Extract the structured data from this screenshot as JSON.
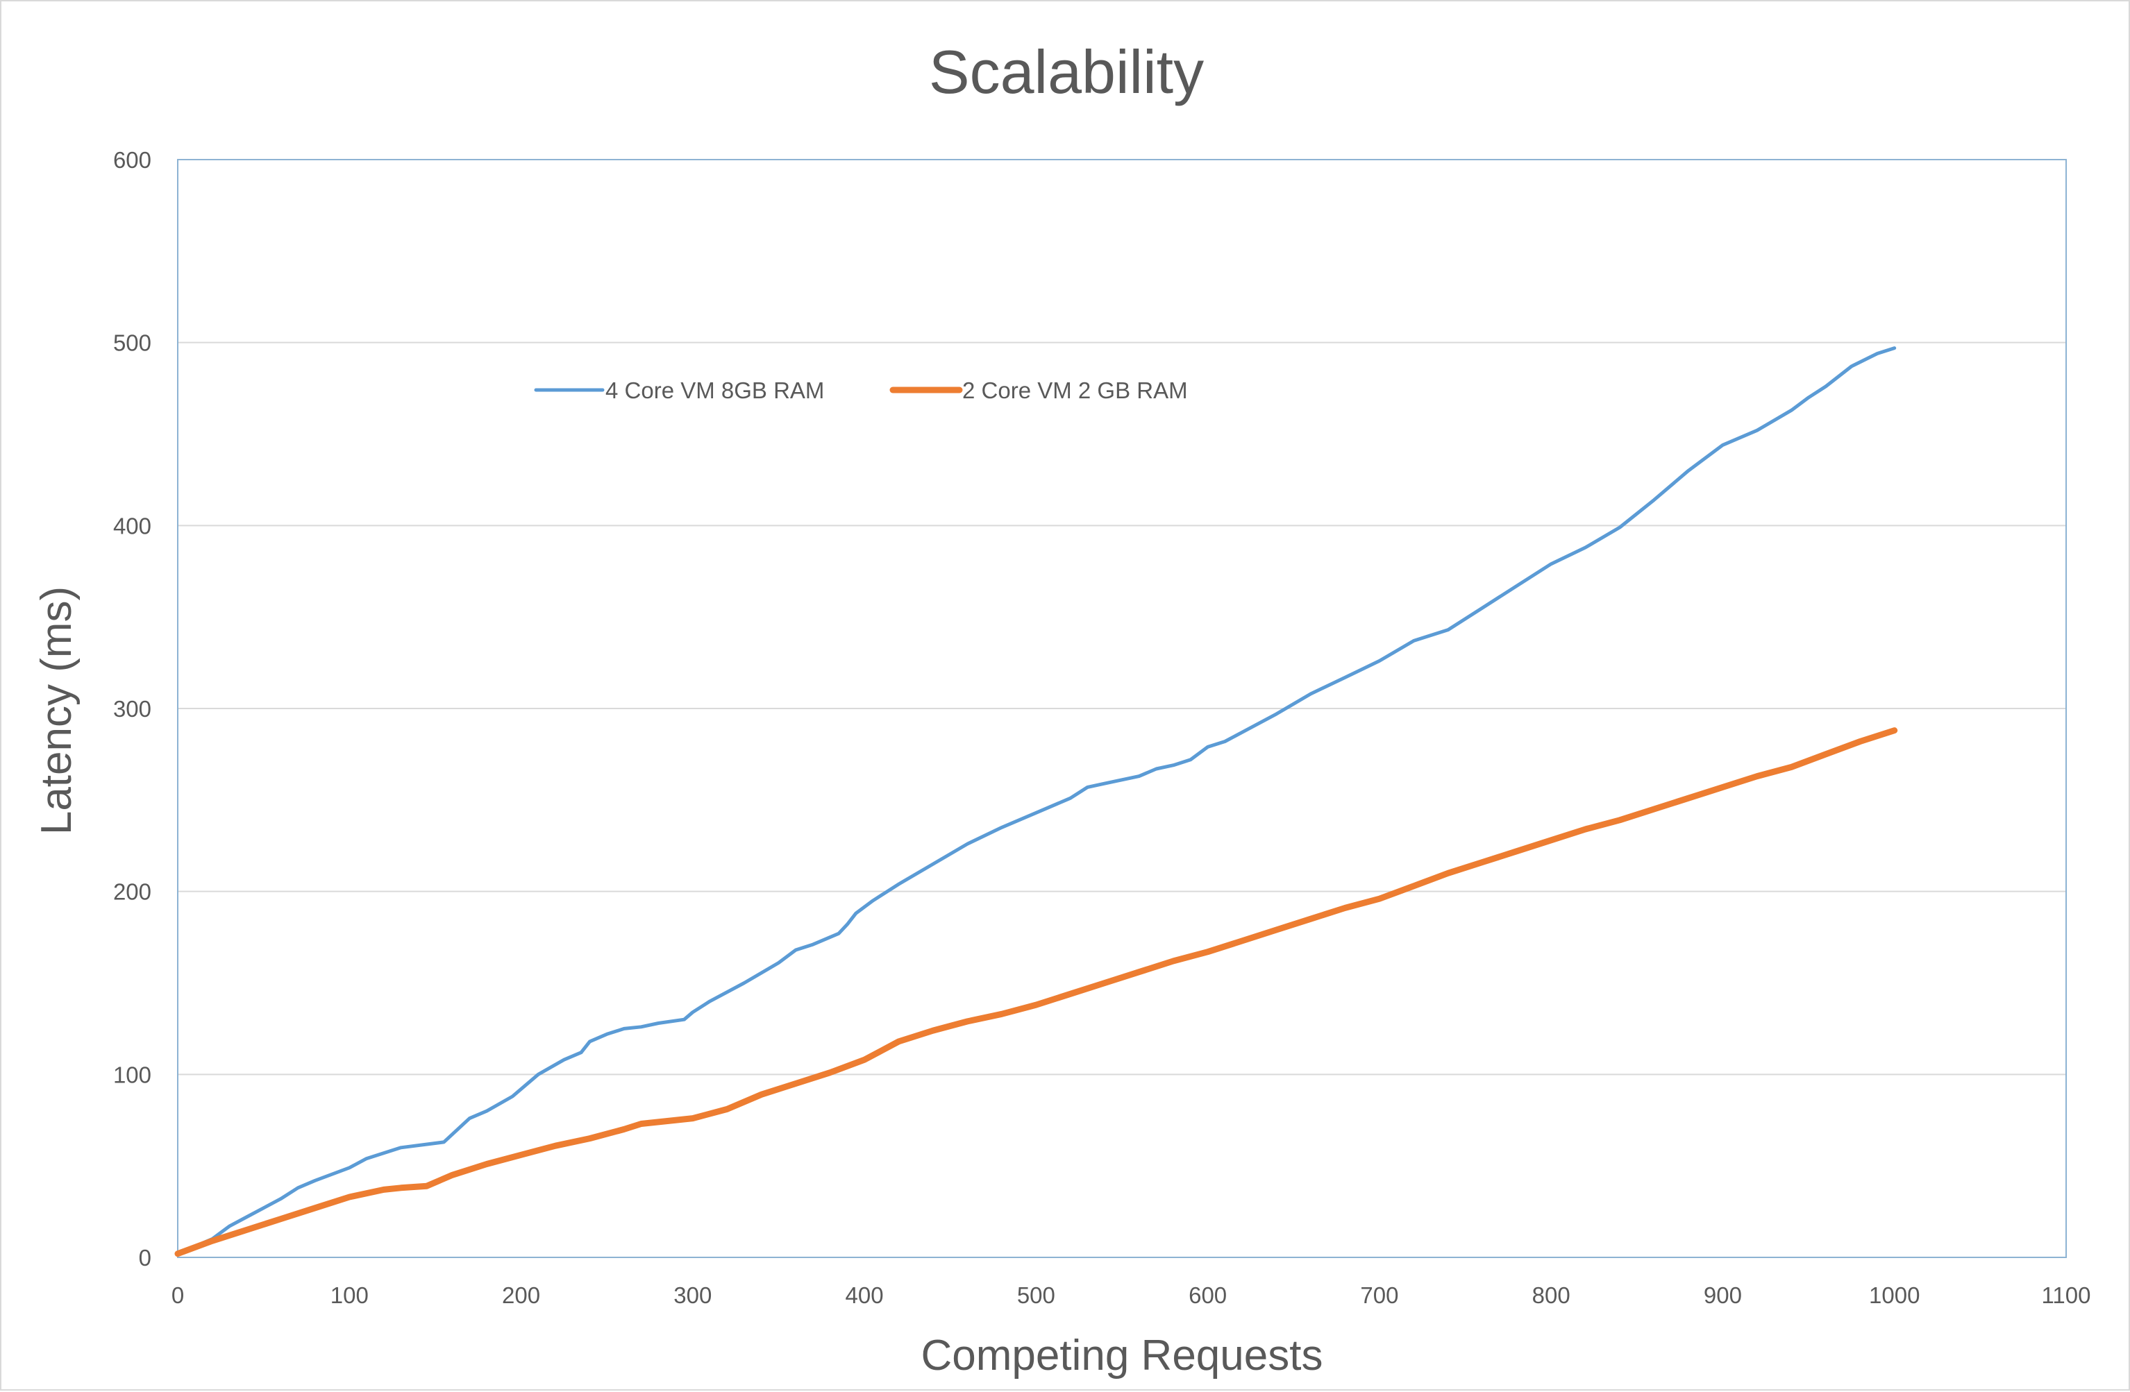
{
  "chart_data": {
    "type": "line",
    "title": "Scalability",
    "xlabel": "Competing Requests",
    "ylabel": "Latency (ms)",
    "xlim": [
      0,
      1100
    ],
    "ylim": [
      0,
      600
    ],
    "x_ticks": [
      0,
      100,
      200,
      300,
      400,
      500,
      600,
      700,
      800,
      900,
      1000,
      1100
    ],
    "y_ticks": [
      0,
      100,
      200,
      300,
      400,
      500,
      600
    ],
    "grid": true,
    "legend_position": "top-left-inside",
    "series": [
      {
        "name": "4 Core VM 8GB RAM",
        "color": "#5b9bd5",
        "x": [
          0,
          20,
          30,
          40,
          60,
          70,
          80,
          100,
          110,
          130,
          155,
          170,
          180,
          195,
          210,
          225,
          235,
          240,
          250,
          260,
          270,
          280,
          295,
          300,
          310,
          330,
          350,
          360,
          370,
          385,
          390,
          395,
          405,
          420,
          440,
          460,
          480,
          500,
          520,
          530,
          540,
          560,
          570,
          580,
          590,
          600,
          610,
          620,
          640,
          660,
          680,
          700,
          720,
          740,
          760,
          780,
          800,
          820,
          840,
          860,
          880,
          900,
          920,
          940,
          950,
          960,
          975,
          990,
          1000
        ],
        "y": [
          2,
          10,
          17,
          22,
          32,
          38,
          42,
          49,
          54,
          60,
          63,
          76,
          80,
          88,
          100,
          108,
          112,
          118,
          122,
          125,
          126,
          128,
          130,
          134,
          140,
          150,
          161,
          168,
          171,
          177,
          182,
          188,
          195,
          204,
          215,
          226,
          235,
          243,
          251,
          257,
          259,
          263,
          267,
          269,
          272,
          279,
          282,
          287,
          297,
          308,
          317,
          326,
          337,
          343,
          355,
          367,
          379,
          388,
          399,
          414,
          430,
          444,
          452,
          463,
          470,
          476,
          487,
          494,
          497
        ]
      },
      {
        "name": "2 Core VM 2 GB RAM",
        "color": "#ed7d31",
        "x": [
          0,
          20,
          40,
          60,
          80,
          100,
          120,
          130,
          145,
          160,
          180,
          200,
          220,
          240,
          260,
          270,
          280,
          300,
          320,
          340,
          360,
          380,
          400,
          420,
          440,
          460,
          480,
          500,
          520,
          540,
          560,
          580,
          600,
          620,
          640,
          660,
          680,
          700,
          720,
          740,
          760,
          780,
          800,
          820,
          840,
          860,
          880,
          900,
          920,
          940,
          960,
          980,
          1000
        ],
        "y": [
          2,
          9,
          15,
          21,
          27,
          33,
          37,
          38,
          39,
          45,
          51,
          56,
          61,
          65,
          70,
          73,
          74,
          76,
          81,
          89,
          95,
          101,
          108,
          118,
          124,
          129,
          133,
          138,
          144,
          150,
          156,
          162,
          167,
          173,
          179,
          185,
          191,
          196,
          203,
          210,
          216,
          222,
          228,
          234,
          239,
          245,
          251,
          257,
          263,
          268,
          275,
          282,
          288
        ]
      }
    ]
  }
}
